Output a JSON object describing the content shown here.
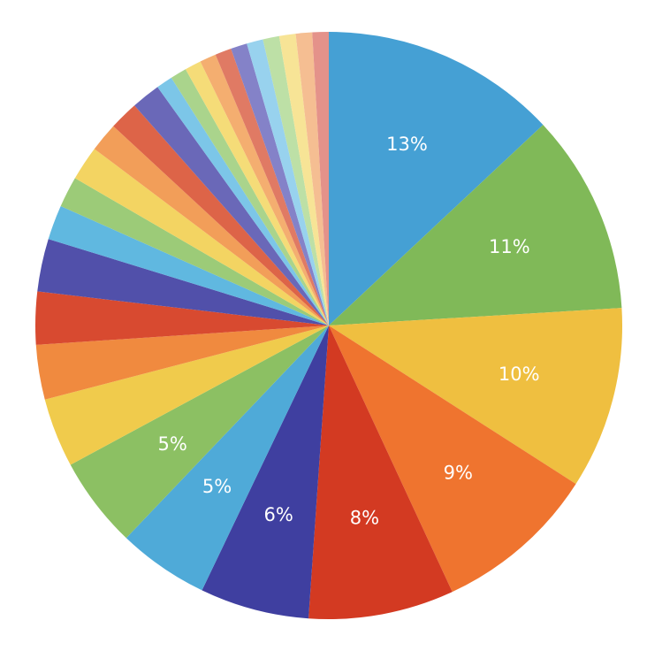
{
  "chart_data": {
    "type": "pie",
    "values": [
      13,
      11,
      10,
      9,
      8,
      6,
      5,
      5,
      3.8,
      3,
      2.9,
      2.9,
      1.9,
      1.7,
      1.9,
      1.6,
      1.6,
      1.6,
      0.9,
      0.9,
      0.9,
      0.9,
      0.9,
      0.9,
      0.9,
      0.9,
      0.9,
      0.9,
      0.9
    ],
    "value_labels": [
      "13%",
      "11%",
      "10%",
      "9%",
      "8%",
      "6%",
      "5%",
      "5%",
      null,
      null,
      null,
      null,
      null,
      null,
      null,
      null,
      null,
      null,
      null,
      null,
      null,
      null,
      null,
      null,
      null,
      null,
      null,
      null,
      null
    ],
    "colors": [
      "#45a0d4",
      "#80b958",
      "#efbf40",
      "#ef742f",
      "#d33a22",
      "#3f3fa0",
      "#4faad8",
      "#8cc063",
      "#f0cb4c",
      "#f08a3f",
      "#d84a30",
      "#5150aa",
      "#60b8e0",
      "#9ccb78",
      "#f3d462",
      "#f29e59",
      "#dd6448",
      "#6a68b8",
      "#7cc6e8",
      "#aad48c",
      "#f5dc78",
      "#f4ae70",
      "#e07a64",
      "#8482c8",
      "#98d2ee",
      "#bde0a6",
      "#f7e496",
      "#f5be92",
      "#e4928a"
    ]
  }
}
